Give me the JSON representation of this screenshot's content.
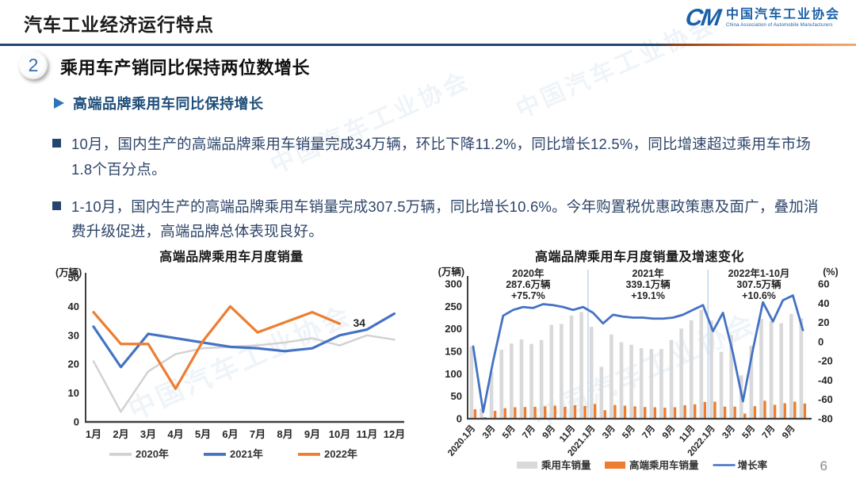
{
  "header": {
    "title": "汽车工业经济运行特点",
    "logo": {
      "cm": "CM",
      "org_cn": "中国汽车工业协会",
      "org_en": "China Association of Automobile Manufacturers"
    }
  },
  "section": {
    "number": "2",
    "title": "乘用车产销同比保持两位数增长"
  },
  "subheading": "高端品牌乘用车同比保持增长",
  "bullets": [
    "10月，国内生产的高端品牌乘用车销量完成34万辆，环比下降11.2%，同比增长12.5%，同比增速超过乘用车市场1.8个百分点。",
    "1-10月，国内生产的高端品牌乘用车销量完成307.5万辆，同比增长10.6%。今年购置税优惠政策惠及面广，叠加消费升级促进，高端品牌总体表现良好。"
  ],
  "page_number": "6",
  "watermark": {
    "text": "中国汽车工业协会"
  },
  "colors": {
    "rule_navy": "#24456e",
    "rule_orange": "#ed7d31",
    "series_blue": "#4472c4",
    "series_orange": "#ed7d31",
    "series_gray": "#d2d2d2",
    "heading_blue": "#1f4e79",
    "body_text": "#2e4569",
    "axis": "#404040"
  },
  "chart_data": [
    {
      "type": "line",
      "title": "高端品牌乘用车月度销量",
      "unit_label": "(万辆)",
      "categories": [
        "1月",
        "2月",
        "3月",
        "4月",
        "5月",
        "6月",
        "7月",
        "8月",
        "9月",
        "10月",
        "11月",
        "12月"
      ],
      "ylim": [
        0,
        50
      ],
      "yticks": [
        0,
        10,
        20,
        30,
        40,
        50
      ],
      "grid": false,
      "legend_position": "bottom",
      "series": [
        {
          "name": "2020年",
          "color": "#d2d2d2",
          "stroke_width": 2.5,
          "values": [
            21,
            3.5,
            17.5,
            23.5,
            25.5,
            26,
            26.5,
            27.5,
            29,
            26.5,
            30,
            28.5
          ]
        },
        {
          "name": "2021年",
          "color": "#4472c4",
          "stroke_width": 3.2,
          "values": [
            33,
            19,
            30.5,
            29,
            27.5,
            26,
            25.5,
            24.5,
            25.5,
            30,
            32,
            37.5
          ]
        },
        {
          "name": "2022年",
          "color": "#ed7d31",
          "stroke_width": 3.2,
          "values": [
            38,
            27,
            27,
            11.5,
            28,
            40,
            31,
            34.5,
            38,
            34
          ]
        }
      ],
      "point_label": {
        "text": "34",
        "series_index": 2,
        "point_index": 9
      }
    },
    {
      "type": "bar+line",
      "title": "高端品牌乘用车月度销量及增速变化",
      "left_axis": {
        "unit": "(万辆)",
        "min": 0,
        "max": 300,
        "ticks": [
          0,
          50,
          100,
          150,
          200,
          250,
          300
        ]
      },
      "right_axis": {
        "unit": "(%)",
        "min": -80,
        "max": 60,
        "ticks": [
          -80,
          -60,
          -40,
          -20,
          0,
          20,
          40,
          60
        ]
      },
      "n_months": 34,
      "tick_labels": [
        "2020.1月",
        "3月",
        "5月",
        "7月",
        "9月",
        "11月",
        "2021.1月",
        "3月",
        "5月",
        "7月",
        "9月",
        "11月",
        "2022.1月",
        "3月",
        "5月",
        "7月",
        "9月"
      ],
      "tick_every": 2,
      "separator_indices": [
        12,
        24
      ],
      "legend_position": "bottom",
      "series": [
        {
          "name": "乘用车销量",
          "type": "bar",
          "axis": "left",
          "color": "#d9d9d9",
          "values": [
            160.7,
            22.4,
            104.3,
            153.6,
            167.4,
            176.4,
            166.5,
            175.3,
            208.8,
            211.0,
            229.7,
            237.5,
            204.5,
            115.6,
            187.4,
            170.4,
            164.6,
            156.9,
            155.1,
            155.2,
            175.1,
            200.7,
            219.2,
            242.2,
            218.6,
            148.7,
            186.4,
            96.5,
            162.3,
            222.2,
            217.4,
            212.5,
            233.2,
            223.1
          ]
        },
        {
          "name": "高端乘用车销量",
          "type": "bar",
          "axis": "left",
          "color": "#ed7d31",
          "values": [
            21,
            3.5,
            17.5,
            23.5,
            25.5,
            26,
            26.5,
            27.5,
            29,
            26.5,
            30,
            28.5,
            33,
            19,
            30.5,
            29,
            27.5,
            26,
            25.5,
            24.5,
            25.5,
            30,
            32,
            37.5,
            38,
            27,
            27,
            11.5,
            28,
            40,
            31,
            34.5,
            38,
            34
          ]
        },
        {
          "name": "增长率",
          "type": "line",
          "axis": "right",
          "color": "#4472c4",
          "stroke_width": 2.8,
          "values": [
            -5,
            -73,
            -20,
            27,
            33,
            36,
            35,
            39,
            38,
            36,
            33,
            36,
            30,
            19,
            28,
            26,
            25,
            25,
            24,
            24,
            25,
            28,
            33,
            38,
            11,
            30,
            -12,
            -62,
            -8,
            41,
            21,
            43,
            48,
            12
          ]
        }
      ],
      "annotations": [
        {
          "lines": [
            "2020年",
            "287.6万辆",
            "+75.7%"
          ],
          "center_index": 5.5
        },
        {
          "lines": [
            "2021年",
            "339.1万辆",
            "+19.1%"
          ],
          "center_index": 17.5
        },
        {
          "lines": [
            "2022年1-10月",
            "307.5万辆",
            "+10.6%"
          ],
          "center_index": 28.6
        }
      ]
    }
  ]
}
